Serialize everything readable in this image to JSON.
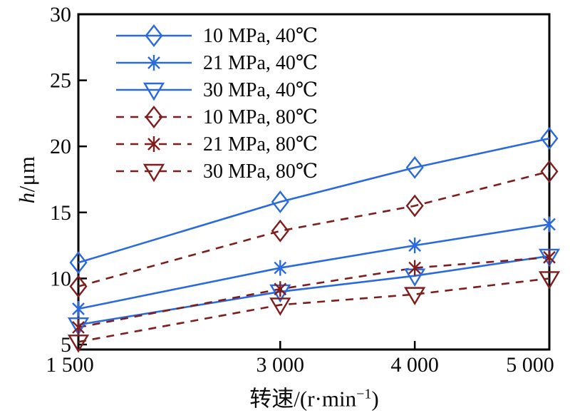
{
  "figure": {
    "background": "#ffffff",
    "axis_color": "#000000",
    "text_color": "#0a0a0a",
    "ylabel": {
      "italic": "h",
      "rest": "/μm"
    },
    "xlabel": {
      "main": "转速/(r·min",
      "sup": "−1",
      "end": ")"
    },
    "y_ticks": [
      {
        "value": 5,
        "label": "5"
      },
      {
        "value": 10,
        "label": "10"
      },
      {
        "value": 15,
        "label": "15"
      },
      {
        "value": 20,
        "label": "20"
      },
      {
        "value": 25,
        "label": "25"
      },
      {
        "value": 30,
        "label": "30"
      }
    ],
    "x_ticks": [
      {
        "value": 1500,
        "label": "1 500"
      },
      {
        "value": 3000,
        "label": "3 000"
      },
      {
        "value": 4000,
        "label": "4 000"
      },
      {
        "value": 5000,
        "label": "5 000"
      }
    ]
  },
  "chart_data": {
    "type": "line",
    "title": "",
    "xlabel": "转速/(r·min−1)",
    "ylabel": "h/μm",
    "x": [
      1500,
      3000,
      4000,
      5000
    ],
    "xlim": [
      1500,
      5000
    ],
    "ylim": [
      4.6,
      30
    ],
    "y_tick_step": 5,
    "grid": false,
    "legend_position": "top-left-inside",
    "colors": {
      "cool_40C": "#2a6ae0",
      "hot_80C": "#7f1d1d"
    },
    "series": [
      {
        "name": "10 MPa, 40℃",
        "color": "#2a6ae0",
        "line": "solid",
        "marker": "diamond",
        "values": [
          11.2,
          15.8,
          18.4,
          20.6
        ]
      },
      {
        "name": "21 MPa, 40℃",
        "color": "#2a6ae0",
        "line": "solid",
        "marker": "asterisk",
        "values": [
          7.7,
          10.8,
          12.5,
          14.1
        ]
      },
      {
        "name": "30 MPa, 40℃",
        "color": "#2a6ae0",
        "line": "solid",
        "marker": "triangle-down",
        "values": [
          6.5,
          9.0,
          10.2,
          11.7
        ]
      },
      {
        "name": "10 MPa, 80℃",
        "color": "#7f1d1d",
        "line": "dashed",
        "marker": "diamond",
        "values": [
          9.4,
          13.6,
          15.5,
          18.1
        ]
      },
      {
        "name": "21 MPa, 80℃",
        "color": "#7f1d1d",
        "line": "dashed",
        "marker": "asterisk",
        "values": [
          6.3,
          9.2,
          10.8,
          11.6
        ]
      },
      {
        "name": "30 MPa, 80℃",
        "color": "#7f1d1d",
        "line": "dashed",
        "marker": "triangle-down",
        "values": [
          5.2,
          8.0,
          8.8,
          10.0
        ]
      }
    ]
  }
}
